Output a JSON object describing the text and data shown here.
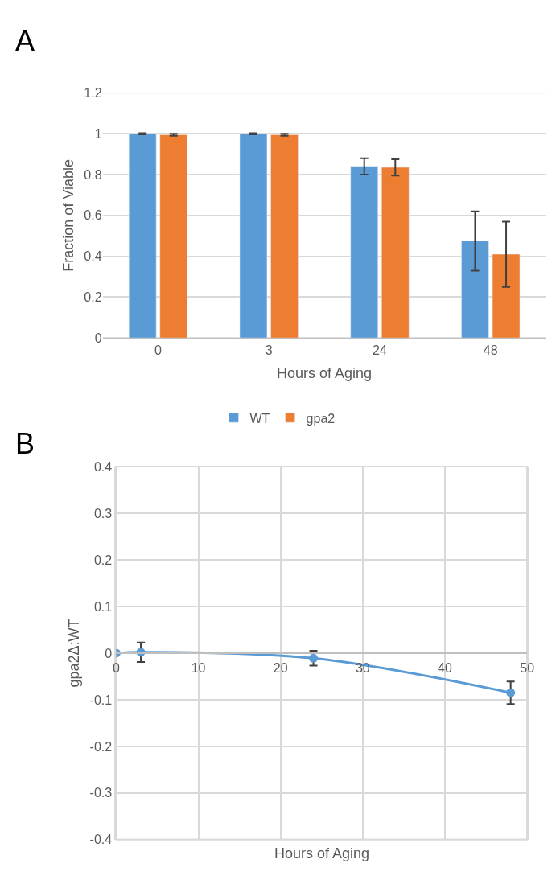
{
  "chart_data": [
    {
      "type": "bar",
      "title": "A",
      "xlabel": "Hours of Aging",
      "ylabel": "Fraction of Viable",
      "categories": [
        "0",
        "3",
        "24",
        "48"
      ],
      "series": [
        {
          "name": "WT",
          "color": "#5b9bd5",
          "values": [
            1.0,
            1.0,
            0.84,
            0.475
          ],
          "errors": [
            0.003,
            0.003,
            0.04,
            0.145
          ]
        },
        {
          "name": "gpa2",
          "color": "#ed7d31",
          "values": [
            0.995,
            0.995,
            0.835,
            0.41
          ],
          "errors": [
            0.005,
            0.005,
            0.04,
            0.16
          ]
        }
      ],
      "ylim": [
        0,
        1.2
      ],
      "yticks": [
        0,
        0.2,
        0.4,
        0.6,
        0.8,
        1,
        1.2
      ],
      "grid": "y",
      "legend": "bottom"
    },
    {
      "type": "line",
      "title": "B",
      "xlabel": "Hours of Aging",
      "ylabel": "gpa2Δ:WT",
      "x": [
        0,
        3,
        24,
        48
      ],
      "series": [
        {
          "color": "#5b9bd5",
          "values": [
            0,
            0.002,
            -0.011,
            -0.085
          ],
          "errors": [
            null,
            0.021,
            0.016,
            0.024
          ]
        }
      ],
      "xlim": [
        0,
        50
      ],
      "xticks": [
        0,
        10,
        20,
        30,
        40,
        50
      ],
      "ylim": [
        -0.4,
        0.4
      ],
      "yticks": [
        -0.4,
        -0.3,
        -0.2,
        -0.1,
        0,
        0.1,
        0.2,
        0.3,
        0.4
      ],
      "grid": true,
      "marker": "circle",
      "line_style": "solid"
    }
  ]
}
